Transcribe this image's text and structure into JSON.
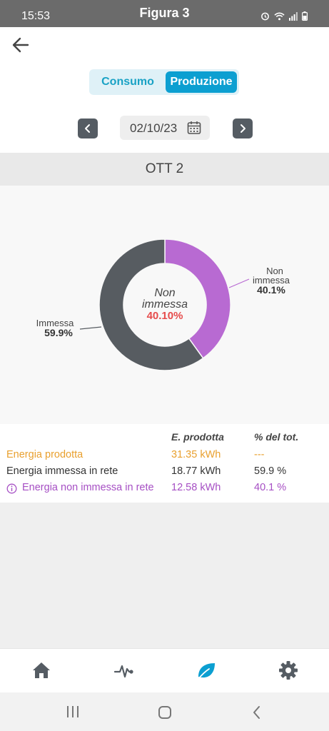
{
  "status": {
    "time": "15:53",
    "title": "Figura 3"
  },
  "segment": {
    "consumo": "Consumo",
    "produzione": "Produzione",
    "selected": "produzione"
  },
  "date": "02/10/23",
  "day_header": "OTT 2",
  "chart_data": {
    "type": "pie",
    "series": [
      {
        "name": "Non immessa",
        "value": 40.1,
        "label": "40.1%",
        "color": "#b86ad2"
      },
      {
        "name": "Immessa",
        "value": 59.9,
        "label": "59.9%",
        "color": "#575c61"
      }
    ],
    "center": {
      "line1": "Non",
      "line2": "immessa",
      "value": "40.10%"
    },
    "labels": {
      "non_line1": "Non",
      "non_line2": "immessa",
      "non_pct": "40.1%",
      "imm_name": "Immessa",
      "imm_pct": "59.9%"
    }
  },
  "table": {
    "headers": {
      "produced": "E. prodotta",
      "pct": "% del tot."
    },
    "rows": [
      {
        "label": "Energia prodotta",
        "value": "31.35 kWh",
        "pct": "---",
        "color": "#e9a02e"
      },
      {
        "label": "Energia immessa in rete",
        "value": "18.77 kWh",
        "pct": "59.9 %",
        "color": "#333333"
      },
      {
        "label": "Energia non immessa in rete",
        "value": "12.58 kWh",
        "pct": "40.1 %",
        "color": "#a64fc4",
        "icon": "info-icon"
      }
    ]
  },
  "nav": {
    "active": "leaf",
    "tabs": [
      "home-icon",
      "pulse-icon",
      "leaf-icon",
      "gear-icon"
    ]
  },
  "colors": {
    "accent": "#0c9fd1",
    "purple": "#b86ad2",
    "gray": "#575c61",
    "red": "#e64b4b",
    "orange": "#e9a02e"
  }
}
